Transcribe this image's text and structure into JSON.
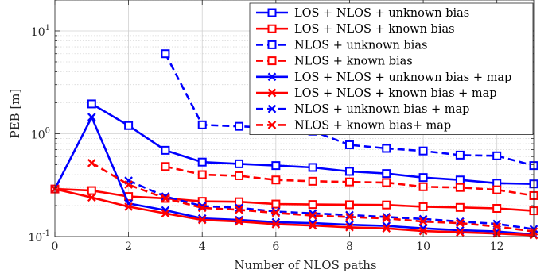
{
  "chart_data": {
    "type": "line",
    "xlabel": "Number of NLOS paths",
    "ylabel": "PEB [m]",
    "xlim": [
      0,
      13
    ],
    "ylim": [
      0.1,
      20
    ],
    "yscale": "log",
    "grid": true,
    "legend_position": "top-right",
    "x_ticks": [
      {
        "value": 0,
        "label": "0"
      },
      {
        "value": 2,
        "label": "2"
      },
      {
        "value": 4,
        "label": "4"
      },
      {
        "value": 6,
        "label": "6"
      },
      {
        "value": 8,
        "label": "8"
      },
      {
        "value": 10,
        "label": "10"
      },
      {
        "value": 12,
        "label": "12"
      }
    ],
    "y_ticks": [
      {
        "value": 0.1,
        "base": "10",
        "exp": "-1"
      },
      {
        "value": 1,
        "base": "10",
        "exp": "0"
      },
      {
        "value": 10,
        "base": "10",
        "exp": "1"
      }
    ],
    "series": [
      {
        "name": "LOS + NLOS + unknown bias",
        "color": "#0000ff",
        "dash": "solid",
        "marker": "square",
        "x": [
          1,
          2,
          3,
          4,
          5,
          6,
          7,
          8,
          9,
          10,
          11,
          12,
          13
        ],
        "y": [
          1.95,
          1.2,
          0.69,
          0.53,
          0.51,
          0.49,
          0.47,
          0.43,
          0.41,
          0.375,
          0.355,
          0.33,
          0.325
        ]
      },
      {
        "name": "LOS + NLOS + known bias",
        "color": "#ff0000",
        "dash": "solid",
        "marker": "square",
        "x": [
          0,
          1,
          2,
          3,
          4,
          5,
          6,
          7,
          8,
          9,
          10,
          11,
          12,
          13
        ],
        "y": [
          0.29,
          0.28,
          0.245,
          0.235,
          0.22,
          0.218,
          0.207,
          0.205,
          0.204,
          0.203,
          0.195,
          0.192,
          0.188,
          0.178
        ]
      },
      {
        "name": "NLOS + unknown bias",
        "color": "#0000ff",
        "dash": "dashed",
        "marker": "square",
        "x": [
          3,
          4,
          5,
          6,
          7,
          8,
          9,
          10,
          11,
          12,
          13
        ],
        "y": [
          6.0,
          1.22,
          1.18,
          1.14,
          1.06,
          0.78,
          0.72,
          0.68,
          0.62,
          0.61,
          0.49
        ]
      },
      {
        "name": "NLOS + known bias",
        "color": "#ff0000",
        "dash": "dashed",
        "marker": "square",
        "x": [
          3,
          4,
          5,
          6,
          7,
          8,
          9,
          10,
          11,
          12,
          13
        ],
        "y": [
          0.48,
          0.4,
          0.39,
          0.355,
          0.345,
          0.34,
          0.335,
          0.305,
          0.3,
          0.285,
          0.25
        ]
      },
      {
        "name": "LOS + NLOS + unknown bias + map",
        "color": "#0000ff",
        "dash": "solid",
        "marker": "x",
        "x": [
          0,
          1,
          2,
          3,
          4,
          5,
          6,
          7,
          8,
          9,
          10,
          11,
          12,
          13
        ],
        "y": [
          0.29,
          1.45,
          0.21,
          0.18,
          0.15,
          0.145,
          0.138,
          0.135,
          0.13,
          0.127,
          0.12,
          0.115,
          0.112,
          0.105
        ]
      },
      {
        "name": "LOS + NLOS + known bias + map",
        "color": "#ff0000",
        "dash": "solid",
        "marker": "x",
        "x": [
          0,
          1,
          2,
          3,
          4,
          5,
          6,
          7,
          8,
          9,
          10,
          11,
          12,
          13
        ],
        "y": [
          0.29,
          0.24,
          0.195,
          0.168,
          0.145,
          0.14,
          0.132,
          0.128,
          0.123,
          0.12,
          0.113,
          0.11,
          0.107,
          0.103
        ]
      },
      {
        "name": "NLOS + unknown bias + map",
        "color": "#0000ff",
        "dash": "dashed",
        "marker": "x",
        "x": [
          2,
          3,
          4,
          5,
          6,
          7,
          8,
          9,
          10,
          11,
          12,
          13
        ],
        "y": [
          0.35,
          0.245,
          0.198,
          0.19,
          0.175,
          0.168,
          0.162,
          0.155,
          0.148,
          0.14,
          0.133,
          0.118
        ]
      },
      {
        "name": "NLOS + known bias+ map",
        "color": "#ff0000",
        "dash": "dashed",
        "marker": "x",
        "x": [
          1,
          2,
          3,
          4,
          5,
          6,
          7,
          8,
          9,
          10,
          11,
          12,
          13
        ],
        "y": [
          0.52,
          0.32,
          0.235,
          0.19,
          0.182,
          0.17,
          0.16,
          0.155,
          0.15,
          0.14,
          0.135,
          0.125,
          0.112
        ]
      }
    ]
  }
}
